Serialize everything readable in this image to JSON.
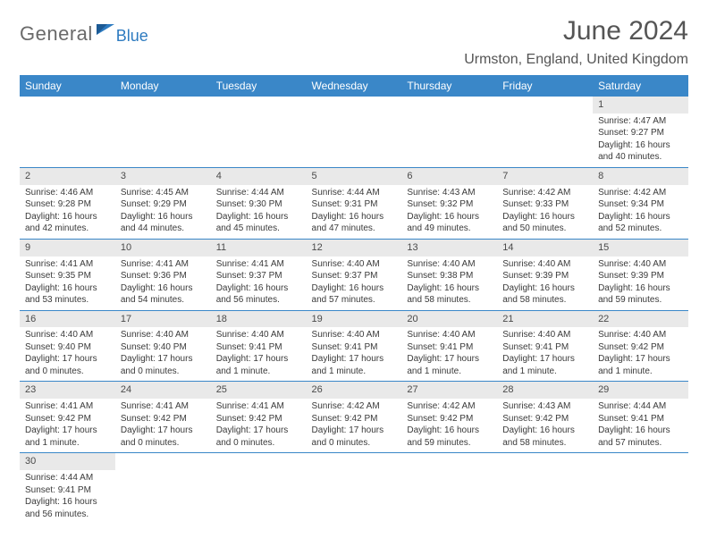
{
  "logo": {
    "general": "General",
    "blue": "Blue"
  },
  "title": "June 2024",
  "location": "Urmston, England, United Kingdom",
  "weekday_labels": [
    "Sunday",
    "Monday",
    "Tuesday",
    "Wednesday",
    "Thursday",
    "Friday",
    "Saturday"
  ],
  "header": {
    "bg": "#3a87c8",
    "fg": "#ffffff"
  },
  "daynum_bg": "#e9e9e9",
  "row_border": "#3a87c8",
  "weeks": [
    [
      null,
      null,
      null,
      null,
      null,
      null,
      {
        "n": "1",
        "sr": "Sunrise: 4:47 AM",
        "ss": "Sunset: 9:27 PM",
        "d1": "Daylight: 16 hours",
        "d2": "and 40 minutes."
      }
    ],
    [
      {
        "n": "2",
        "sr": "Sunrise: 4:46 AM",
        "ss": "Sunset: 9:28 PM",
        "d1": "Daylight: 16 hours",
        "d2": "and 42 minutes."
      },
      {
        "n": "3",
        "sr": "Sunrise: 4:45 AM",
        "ss": "Sunset: 9:29 PM",
        "d1": "Daylight: 16 hours",
        "d2": "and 44 minutes."
      },
      {
        "n": "4",
        "sr": "Sunrise: 4:44 AM",
        "ss": "Sunset: 9:30 PM",
        "d1": "Daylight: 16 hours",
        "d2": "and 45 minutes."
      },
      {
        "n": "5",
        "sr": "Sunrise: 4:44 AM",
        "ss": "Sunset: 9:31 PM",
        "d1": "Daylight: 16 hours",
        "d2": "and 47 minutes."
      },
      {
        "n": "6",
        "sr": "Sunrise: 4:43 AM",
        "ss": "Sunset: 9:32 PM",
        "d1": "Daylight: 16 hours",
        "d2": "and 49 minutes."
      },
      {
        "n": "7",
        "sr": "Sunrise: 4:42 AM",
        "ss": "Sunset: 9:33 PM",
        "d1": "Daylight: 16 hours",
        "d2": "and 50 minutes."
      },
      {
        "n": "8",
        "sr": "Sunrise: 4:42 AM",
        "ss": "Sunset: 9:34 PM",
        "d1": "Daylight: 16 hours",
        "d2": "and 52 minutes."
      }
    ],
    [
      {
        "n": "9",
        "sr": "Sunrise: 4:41 AM",
        "ss": "Sunset: 9:35 PM",
        "d1": "Daylight: 16 hours",
        "d2": "and 53 minutes."
      },
      {
        "n": "10",
        "sr": "Sunrise: 4:41 AM",
        "ss": "Sunset: 9:36 PM",
        "d1": "Daylight: 16 hours",
        "d2": "and 54 minutes."
      },
      {
        "n": "11",
        "sr": "Sunrise: 4:41 AM",
        "ss": "Sunset: 9:37 PM",
        "d1": "Daylight: 16 hours",
        "d2": "and 56 minutes."
      },
      {
        "n": "12",
        "sr": "Sunrise: 4:40 AM",
        "ss": "Sunset: 9:37 PM",
        "d1": "Daylight: 16 hours",
        "d2": "and 57 minutes."
      },
      {
        "n": "13",
        "sr": "Sunrise: 4:40 AM",
        "ss": "Sunset: 9:38 PM",
        "d1": "Daylight: 16 hours",
        "d2": "and 58 minutes."
      },
      {
        "n": "14",
        "sr": "Sunrise: 4:40 AM",
        "ss": "Sunset: 9:39 PM",
        "d1": "Daylight: 16 hours",
        "d2": "and 58 minutes."
      },
      {
        "n": "15",
        "sr": "Sunrise: 4:40 AM",
        "ss": "Sunset: 9:39 PM",
        "d1": "Daylight: 16 hours",
        "d2": "and 59 minutes."
      }
    ],
    [
      {
        "n": "16",
        "sr": "Sunrise: 4:40 AM",
        "ss": "Sunset: 9:40 PM",
        "d1": "Daylight: 17 hours",
        "d2": "and 0 minutes."
      },
      {
        "n": "17",
        "sr": "Sunrise: 4:40 AM",
        "ss": "Sunset: 9:40 PM",
        "d1": "Daylight: 17 hours",
        "d2": "and 0 minutes."
      },
      {
        "n": "18",
        "sr": "Sunrise: 4:40 AM",
        "ss": "Sunset: 9:41 PM",
        "d1": "Daylight: 17 hours",
        "d2": "and 1 minute."
      },
      {
        "n": "19",
        "sr": "Sunrise: 4:40 AM",
        "ss": "Sunset: 9:41 PM",
        "d1": "Daylight: 17 hours",
        "d2": "and 1 minute."
      },
      {
        "n": "20",
        "sr": "Sunrise: 4:40 AM",
        "ss": "Sunset: 9:41 PM",
        "d1": "Daylight: 17 hours",
        "d2": "and 1 minute."
      },
      {
        "n": "21",
        "sr": "Sunrise: 4:40 AM",
        "ss": "Sunset: 9:41 PM",
        "d1": "Daylight: 17 hours",
        "d2": "and 1 minute."
      },
      {
        "n": "22",
        "sr": "Sunrise: 4:40 AM",
        "ss": "Sunset: 9:42 PM",
        "d1": "Daylight: 17 hours",
        "d2": "and 1 minute."
      }
    ],
    [
      {
        "n": "23",
        "sr": "Sunrise: 4:41 AM",
        "ss": "Sunset: 9:42 PM",
        "d1": "Daylight: 17 hours",
        "d2": "and 1 minute."
      },
      {
        "n": "24",
        "sr": "Sunrise: 4:41 AM",
        "ss": "Sunset: 9:42 PM",
        "d1": "Daylight: 17 hours",
        "d2": "and 0 minutes."
      },
      {
        "n": "25",
        "sr": "Sunrise: 4:41 AM",
        "ss": "Sunset: 9:42 PM",
        "d1": "Daylight: 17 hours",
        "d2": "and 0 minutes."
      },
      {
        "n": "26",
        "sr": "Sunrise: 4:42 AM",
        "ss": "Sunset: 9:42 PM",
        "d1": "Daylight: 17 hours",
        "d2": "and 0 minutes."
      },
      {
        "n": "27",
        "sr": "Sunrise: 4:42 AM",
        "ss": "Sunset: 9:42 PM",
        "d1": "Daylight: 16 hours",
        "d2": "and 59 minutes."
      },
      {
        "n": "28",
        "sr": "Sunrise: 4:43 AM",
        "ss": "Sunset: 9:42 PM",
        "d1": "Daylight: 16 hours",
        "d2": "and 58 minutes."
      },
      {
        "n": "29",
        "sr": "Sunrise: 4:44 AM",
        "ss": "Sunset: 9:41 PM",
        "d1": "Daylight: 16 hours",
        "d2": "and 57 minutes."
      }
    ],
    [
      {
        "n": "30",
        "sr": "Sunrise: 4:44 AM",
        "ss": "Sunset: 9:41 PM",
        "d1": "Daylight: 16 hours",
        "d2": "and 56 minutes."
      },
      null,
      null,
      null,
      null,
      null,
      null
    ]
  ]
}
